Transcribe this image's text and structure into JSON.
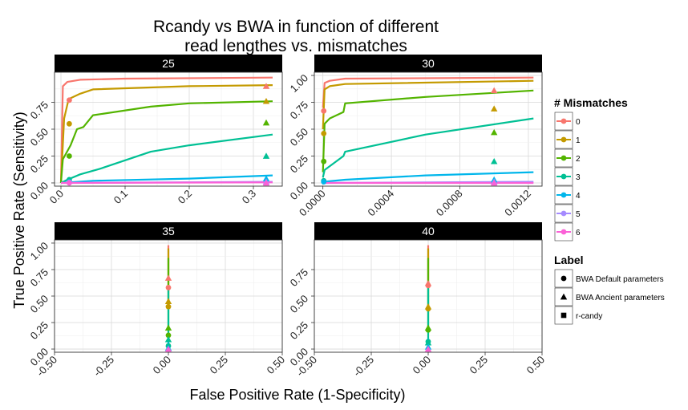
{
  "chart_data": {
    "type": "line",
    "title_line1": "Rcandy vs BWA  in function of different",
    "title_line2": "read lengthes vs. mismatches",
    "xlabel": "False Positive Rate (1-Specificity)",
    "ylabel": "True Positive Rate (Sensitivity)",
    "legend_mismatch": {
      "title": "# Mismatches",
      "entries": [
        {
          "label": "0",
          "color": "#F8766D"
        },
        {
          "label": "1",
          "color": "#C49A00"
        },
        {
          "label": "2",
          "color": "#53B400"
        },
        {
          "label": "3",
          "color": "#00C094"
        },
        {
          "label": "4",
          "color": "#00B6EB"
        },
        {
          "label": "5",
          "color": "#A58AFF"
        },
        {
          "label": "6",
          "color": "#FB61D7"
        }
      ]
    },
    "legend_label": {
      "title": "Label",
      "entries": [
        {
          "label": "BWA Default parameters",
          "shape": "circle"
        },
        {
          "label": "BWA Ancient parameters",
          "shape": "triangle"
        },
        {
          "label": "r-candy",
          "shape": "square"
        }
      ]
    },
    "panels": [
      {
        "strip": "25",
        "xlim": [
          -0.01,
          0.345
        ],
        "ylim": [
          -0.03,
          1.03
        ],
        "xticks": [
          0,
          0.1,
          0.2,
          0.3
        ],
        "xtick_labels": [
          "0.0",
          "0.1",
          "0.2",
          "0.3"
        ],
        "yticks": [
          0,
          0.25,
          0.5,
          0.75
        ],
        "ytick_labels": [
          "0.00",
          "0.25",
          "0.50",
          "0.75"
        ],
        "show_xticks": true,
        "lines": [
          {
            "mm": 0,
            "x": [
              0,
              0.003,
              0.01,
              0.03,
              0.1,
              0.33
            ],
            "y": [
              0,
              0.9,
              0.94,
              0.96,
              0.97,
              0.98
            ]
          },
          {
            "mm": 1,
            "x": [
              0,
              0.005,
              0.012,
              0.03,
              0.05,
              0.2,
              0.33
            ],
            "y": [
              0,
              0.6,
              0.78,
              0.83,
              0.87,
              0.9,
              0.91
            ]
          },
          {
            "mm": 2,
            "x": [
              0,
              0.003,
              0.015,
              0.025,
              0.035,
              0.05,
              0.14,
              0.2,
              0.33
            ],
            "y": [
              0,
              0.22,
              0.35,
              0.5,
              0.52,
              0.63,
              0.71,
              0.74,
              0.76
            ]
          },
          {
            "mm": 3,
            "x": [
              0,
              0.01,
              0.03,
              0.06,
              0.14,
              0.2,
              0.33
            ],
            "y": [
              0,
              0.03,
              0.08,
              0.13,
              0.29,
              0.35,
              0.45
            ]
          },
          {
            "mm": 4,
            "x": [
              0,
              0.05,
              0.2,
              0.33
            ],
            "y": [
              0,
              0.02,
              0.04,
              0.07
            ]
          },
          {
            "mm": 5,
            "x": [
              0,
              0.33
            ],
            "y": [
              0,
              0.01
            ]
          },
          {
            "mm": 6,
            "x": [
              0,
              0.33
            ],
            "y": [
              0,
              0.005
            ]
          }
        ],
        "points": [
          {
            "shape": "circle",
            "mm": 0,
            "x": 0.013,
            "y": 0.77
          },
          {
            "shape": "circle",
            "mm": 1,
            "x": 0.013,
            "y": 0.55
          },
          {
            "shape": "circle",
            "mm": 2,
            "x": 0.013,
            "y": 0.25
          },
          {
            "shape": "circle",
            "mm": 3,
            "x": 0.013,
            "y": 0.03
          },
          {
            "shape": "circle",
            "mm": 4,
            "x": 0.013,
            "y": 0.01
          },
          {
            "shape": "circle",
            "mm": 5,
            "x": 0.013,
            "y": 0.005
          },
          {
            "shape": "circle",
            "mm": 6,
            "x": 0.013,
            "y": 0.0
          },
          {
            "shape": "triangle",
            "mm": 0,
            "x": 0.32,
            "y": 0.9
          },
          {
            "shape": "triangle",
            "mm": 1,
            "x": 0.32,
            "y": 0.76
          },
          {
            "shape": "triangle",
            "mm": 2,
            "x": 0.32,
            "y": 0.56
          },
          {
            "shape": "triangle",
            "mm": 3,
            "x": 0.32,
            "y": 0.25
          },
          {
            "shape": "triangle",
            "mm": 4,
            "x": 0.32,
            "y": 0.04
          },
          {
            "shape": "triangle",
            "mm": 5,
            "x": 0.32,
            "y": 0.01
          },
          {
            "shape": "triangle",
            "mm": 6,
            "x": 0.32,
            "y": 0.0
          }
        ]
      },
      {
        "strip": "30",
        "xlim": [
          -5e-05,
          0.00128
        ],
        "ylim": [
          -0.03,
          1.03
        ],
        "xticks": [
          0,
          0.0004,
          0.0008,
          0.0012
        ],
        "xtick_labels": [
          "0.0000",
          "0.0004",
          "0.0008",
          "0.0012"
        ],
        "yticks": [
          0,
          0.25,
          0.5,
          0.75,
          1.0
        ],
        "ytick_labels": [
          "0.00",
          "0.25",
          "0.50",
          "0.75",
          "1.00"
        ],
        "show_xticks": true,
        "lines": [
          {
            "mm": 0,
            "x": [
              0,
              1e-05,
              4e-05,
              0.00013,
              0.00123
            ],
            "y": [
              0.7,
              0.93,
              0.95,
              0.97,
              0.98
            ]
          },
          {
            "mm": 1,
            "x": [
              0,
              1e-05,
              4e-05,
              0.00013,
              0.00123
            ],
            "y": [
              0.5,
              0.87,
              0.9,
              0.92,
              0.95
            ]
          },
          {
            "mm": 2,
            "x": [
              0,
              1e-05,
              4e-05,
              0.00012,
              0.00013,
              0.0006,
              0.00123
            ],
            "y": [
              0.1,
              0.55,
              0.6,
              0.66,
              0.74,
              0.8,
              0.86
            ]
          },
          {
            "mm": 3,
            "x": [
              0,
              1e-05,
              0.00012,
              0.00013,
              0.0006,
              0.00123
            ],
            "y": [
              0.05,
              0.12,
              0.25,
              0.29,
              0.45,
              0.6
            ]
          },
          {
            "mm": 4,
            "x": [
              0,
              0.00013,
              0.0006,
              0.00123
            ],
            "y": [
              0.01,
              0.03,
              0.07,
              0.1
            ]
          },
          {
            "mm": 5,
            "x": [
              0,
              0.00123
            ],
            "y": [
              0,
              0.01
            ]
          },
          {
            "mm": 6,
            "x": [
              0,
              0.00123
            ],
            "y": [
              0,
              0.0
            ]
          }
        ],
        "points": [
          {
            "shape": "circle",
            "mm": 0,
            "x": 5e-06,
            "y": 0.67
          },
          {
            "shape": "circle",
            "mm": 1,
            "x": 5e-06,
            "y": 0.46
          },
          {
            "shape": "circle",
            "mm": 2,
            "x": 5e-06,
            "y": 0.2
          },
          {
            "shape": "circle",
            "mm": 3,
            "x": 5e-06,
            "y": 0.02
          },
          {
            "shape": "circle",
            "mm": 4,
            "x": 5e-06,
            "y": 0.01
          },
          {
            "shape": "triangle",
            "mm": 0,
            "x": 0.001,
            "y": 0.86
          },
          {
            "shape": "triangle",
            "mm": 1,
            "x": 0.001,
            "y": 0.69
          },
          {
            "shape": "triangle",
            "mm": 2,
            "x": 0.001,
            "y": 0.47
          },
          {
            "shape": "triangle",
            "mm": 3,
            "x": 0.001,
            "y": 0.2
          },
          {
            "shape": "triangle",
            "mm": 4,
            "x": 0.001,
            "y": 0.03
          },
          {
            "shape": "triangle",
            "mm": 5,
            "x": 0.001,
            "y": 0.01
          },
          {
            "shape": "triangle",
            "mm": 6,
            "x": 0.001,
            "y": 0.0
          }
        ]
      },
      {
        "strip": "35",
        "xlim": [
          -0.5,
          0.5
        ],
        "ylim": [
          -0.03,
          1.03
        ],
        "xticks": [
          -0.5,
          -0.25,
          0,
          0.25,
          0.5
        ],
        "xtick_labels": [
          "-0.50",
          "-0.25",
          "0.00",
          "0.25",
          "0.50"
        ],
        "yticks": [
          0,
          0.25,
          0.5,
          0.75,
          1.0
        ],
        "ytick_labels": [
          "0.00",
          "0.25",
          "0.50",
          "0.75",
          "1.00"
        ],
        "show_xticks": true,
        "lines": [
          {
            "mm": 0,
            "x": [
              0,
              0
            ],
            "y": [
              0.6,
              0.98
            ]
          },
          {
            "mm": 1,
            "x": [
              0,
              0
            ],
            "y": [
              0.4,
              0.95
            ]
          },
          {
            "mm": 2,
            "x": [
              0,
              0
            ],
            "y": [
              0.15,
              0.86
            ]
          },
          {
            "mm": 3,
            "x": [
              0,
              0
            ],
            "y": [
              0.05,
              0.6
            ]
          },
          {
            "mm": 4,
            "x": [
              0,
              0
            ],
            "y": [
              0.0,
              0.1
            ]
          }
        ],
        "points": [
          {
            "shape": "circle",
            "mm": 0,
            "x": 0,
            "y": 0.58
          },
          {
            "shape": "circle",
            "mm": 1,
            "x": 0,
            "y": 0.4
          },
          {
            "shape": "circle",
            "mm": 2,
            "x": 0,
            "y": 0.13
          },
          {
            "shape": "circle",
            "mm": 3,
            "x": 0,
            "y": 0.03
          },
          {
            "shape": "triangle",
            "mm": 0,
            "x": 0,
            "y": 0.67
          },
          {
            "shape": "triangle",
            "mm": 1,
            "x": 0,
            "y": 0.45
          },
          {
            "shape": "triangle",
            "mm": 2,
            "x": 0,
            "y": 0.2
          },
          {
            "shape": "triangle",
            "mm": 3,
            "x": 0,
            "y": 0.09
          },
          {
            "shape": "triangle",
            "mm": 4,
            "x": 0,
            "y": 0.01
          },
          {
            "shape": "triangle",
            "mm": 6,
            "x": 0,
            "y": 0.0
          }
        ]
      },
      {
        "strip": "40",
        "xlim": [
          -0.5,
          0.5
        ],
        "ylim": [
          -0.03,
          1.03
        ],
        "xticks": [
          -0.5,
          -0.25,
          0,
          0.25,
          0.5
        ],
        "xtick_labels": [
          "-0.50",
          "-0.25",
          "0.00",
          "0.25",
          "0.50"
        ],
        "yticks": [
          0,
          0.25,
          0.5,
          0.75
        ],
        "ytick_labels": [
          "0.00",
          "0.25",
          "0.50",
          "0.75"
        ],
        "show_xticks": true,
        "lines": [
          {
            "mm": 0,
            "x": [
              0,
              0
            ],
            "y": [
              0.6,
              0.98
            ]
          },
          {
            "mm": 1,
            "x": [
              0,
              0
            ],
            "y": [
              0.38,
              0.95
            ]
          },
          {
            "mm": 2,
            "x": [
              0,
              0
            ],
            "y": [
              0.15,
              0.86
            ]
          },
          {
            "mm": 3,
            "x": [
              0,
              0
            ],
            "y": [
              0.04,
              0.6
            ]
          },
          {
            "mm": 4,
            "x": [
              0,
              0
            ],
            "y": [
              0.0,
              0.1
            ]
          }
        ],
        "points": [
          {
            "shape": "circle",
            "mm": 0,
            "x": 0,
            "y": 0.6
          },
          {
            "shape": "circle",
            "mm": 1,
            "x": 0,
            "y": 0.38
          },
          {
            "shape": "circle",
            "mm": 2,
            "x": 0,
            "y": 0.18
          },
          {
            "shape": "circle",
            "mm": 3,
            "x": 0,
            "y": 0.07
          },
          {
            "shape": "triangle",
            "mm": 0,
            "x": 0,
            "y": 0.62
          },
          {
            "shape": "triangle",
            "mm": 1,
            "x": 0,
            "y": 0.4
          },
          {
            "shape": "triangle",
            "mm": 2,
            "x": 0,
            "y": 0.2
          },
          {
            "shape": "triangle",
            "mm": 3,
            "x": 0,
            "y": 0.06
          },
          {
            "shape": "triangle",
            "mm": 4,
            "x": 0,
            "y": 0.02
          },
          {
            "shape": "triangle",
            "mm": 6,
            "x": 0,
            "y": 0.0
          }
        ]
      }
    ]
  }
}
